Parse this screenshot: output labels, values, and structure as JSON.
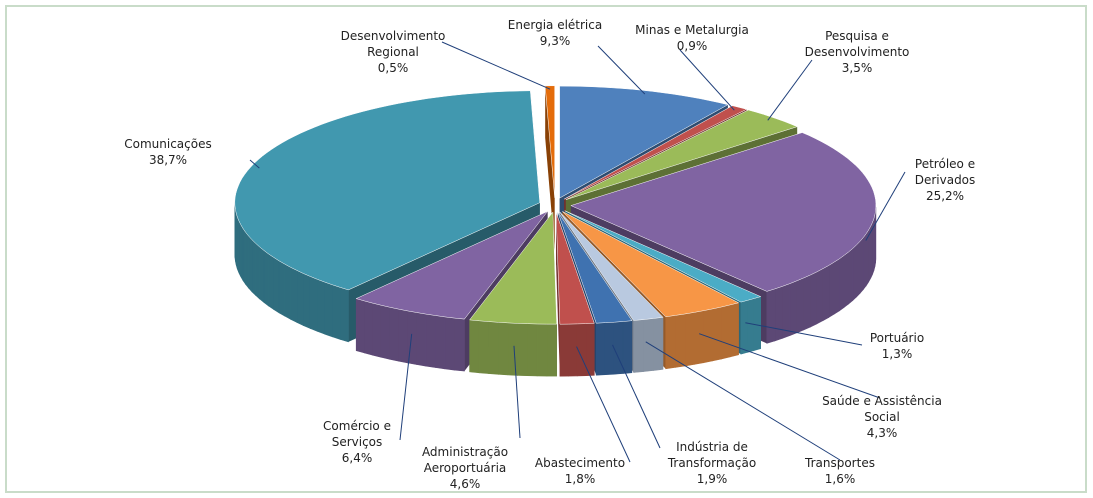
{
  "chart_data": {
    "type": "pie",
    "categories": [
      "Desenvolvimento Regional",
      "Energia elétrica",
      "Minas e Metalurgia",
      "Pesquisa e Desenvolvimento",
      "Petróleo e Derivados",
      "Portuário",
      "Saúde e Assistência Social",
      "Transportes",
      "Indústria de Transformação",
      "Abastecimento",
      "Administração Aeroportuária",
      "Comércio e Serviços",
      "Comunicações"
    ],
    "values": [
      0.5,
      9.3,
      0.9,
      3.5,
      25.2,
      1.3,
      4.3,
      1.6,
      1.9,
      1.8,
      4.6,
      6.4,
      38.7
    ],
    "value_labels": [
      "0,5%",
      "9,3%",
      "0,9%",
      "3,5%",
      "25,2%",
      "1,3%",
      "4,3%",
      "1,6%",
      "1,9%",
      "1,8%",
      "4,6%",
      "6,4%",
      "38,7%"
    ],
    "colors": [
      "#e46c0a",
      "#4f81bd",
      "#c0504d",
      "#9bbb59",
      "#8064a2",
      "#4bacc6",
      "#f79646",
      "#b9c9e0",
      "#3f72b0",
      "#c0504d",
      "#9bbb59",
      "#8064a2",
      "#4198af"
    ]
  }
}
